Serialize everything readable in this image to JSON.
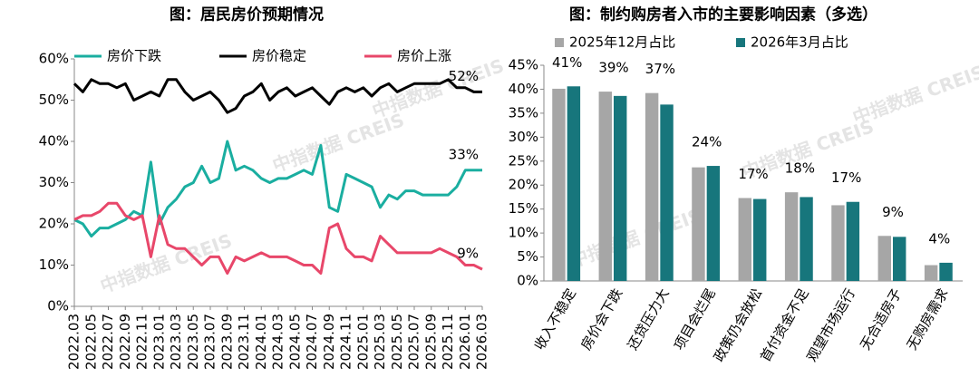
{
  "chart_data": [
    {
      "type": "line",
      "title": "图：居民房价预期情况",
      "watermark": "中指数据 CREIS",
      "categories": [
        "2022.03",
        null,
        "2022.05",
        null,
        "2022.07",
        null,
        "2022.09",
        null,
        "2022.11",
        null,
        "2023.01",
        null,
        "2023.03",
        null,
        "2023.05",
        null,
        "2023.07",
        null,
        "2023.09",
        null,
        "2023.11",
        null,
        "2024.01",
        null,
        "2024.03",
        null,
        "2024.05",
        null,
        "2024.07",
        null,
        "2024.09",
        null,
        "2024.11",
        null,
        "2025.01",
        null,
        "2025.03",
        null,
        "2025.05",
        null,
        "2025.07",
        null,
        "2025.09",
        null,
        "2025.11",
        null,
        "2026.01",
        null,
        "2026.03"
      ],
      "series": [
        {
          "name": "房价下跌",
          "color": "#1aaea0",
          "end_label": "33%",
          "values": [
            21,
            20,
            17,
            19,
            19,
            20,
            21,
            23,
            22,
            35,
            20,
            24,
            26,
            29,
            30,
            34,
            30,
            31,
            40,
            33,
            34,
            33,
            31,
            30,
            31,
            31,
            32,
            33,
            32,
            39,
            24,
            23,
            32,
            31,
            30,
            29,
            24,
            27,
            26,
            28,
            28,
            27,
            27,
            27,
            27,
            29,
            33,
            33,
            33
          ]
        },
        {
          "name": "房价稳定",
          "color": "#000000",
          "end_label": "52%",
          "values": [
            54,
            52,
            55,
            54,
            54,
            53,
            54,
            50,
            51,
            52,
            51,
            55,
            55,
            52,
            50,
            51,
            52,
            50,
            47,
            48,
            51,
            52,
            54,
            50,
            52,
            53,
            51,
            52,
            53,
            51,
            49,
            52,
            53,
            52,
            53,
            51,
            53,
            54,
            52,
            53,
            54,
            54,
            54,
            54,
            55,
            53,
            53,
            52,
            52
          ]
        },
        {
          "name": "房价上涨",
          "color": "#e8476a",
          "end_label": "9%",
          "values": [
            21,
            22,
            22,
            23,
            25,
            25,
            22,
            21,
            22,
            12,
            22,
            15,
            14,
            14,
            12,
            10,
            12,
            12,
            8,
            12,
            11,
            12,
            13,
            12,
            12,
            12,
            11,
            10,
            10,
            8,
            19,
            20,
            14,
            12,
            12,
            11,
            17,
            15,
            13,
            13,
            13,
            13,
            13,
            14,
            13,
            12,
            10,
            10,
            9
          ]
        }
      ],
      "ylim": [
        0,
        60
      ],
      "yticks": [
        {
          "value": 0,
          "label": "0%"
        },
        {
          "value": 10,
          "label": "10%"
        },
        {
          "value": 20,
          "label": "20%"
        },
        {
          "value": 30,
          "label": "30%"
        },
        {
          "value": 40,
          "label": "40%"
        },
        {
          "value": 50,
          "label": "50%"
        },
        {
          "value": 60,
          "label": "60%"
        }
      ],
      "grid": false
    },
    {
      "type": "bar",
      "title": "图：制约购房者入市的主要影响因素（多选）",
      "watermark": "中指数据 CREIS",
      "categories": [
        "收入不稳定",
        "房价会下跌",
        "还贷压力大",
        "项目会烂尾",
        "政策仍会放松",
        "首付资金不足",
        "观望市场运行",
        "无合适房子",
        "无购房需求"
      ],
      "series": [
        {
          "name": "2025年12月占比",
          "color": "#a6a6a6",
          "values": [
            40.1,
            39.5,
            39.2,
            23.7,
            17.3,
            18.5,
            15.8,
            9.4,
            3.3
          ]
        },
        {
          "name": "2026年3月占比",
          "color": "#17767c",
          "values": [
            40.6,
            38.6,
            36.8,
            24.0,
            17.1,
            17.5,
            16.5,
            9.2,
            3.8
          ],
          "value_labels": [
            "41%",
            "39%",
            "37%",
            "24%",
            "17%",
            "18%",
            "17%",
            "9%",
            "4%"
          ]
        }
      ],
      "ylim": [
        0,
        45
      ],
      "yticks": [
        {
          "value": 0,
          "label": "0%"
        },
        {
          "value": 5,
          "label": "5%"
        },
        {
          "value": 10,
          "label": "10%"
        },
        {
          "value": 15,
          "label": "15%"
        },
        {
          "value": 20,
          "label": "20%"
        },
        {
          "value": 25,
          "label": "25%"
        },
        {
          "value": 30,
          "label": "30%"
        },
        {
          "value": 35,
          "label": "35%"
        },
        {
          "value": 40,
          "label": "40%"
        },
        {
          "value": 45,
          "label": "45%"
        }
      ],
      "grid": false
    }
  ]
}
